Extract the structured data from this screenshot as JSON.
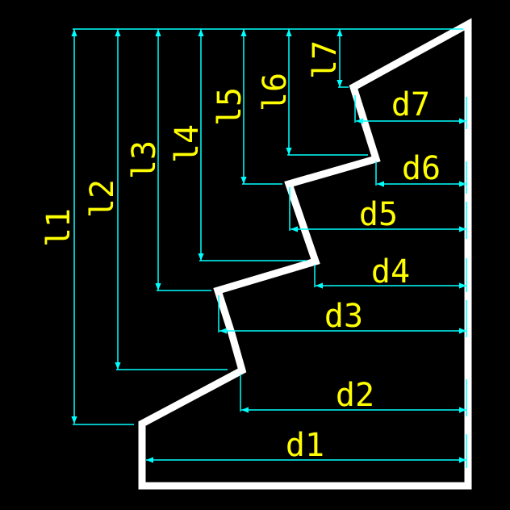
{
  "colors": {
    "background": "#000000",
    "outline": "#ffffff",
    "dimension_line": "#00ffff",
    "label": "#ffff00"
  },
  "vertical_dimensions": [
    {
      "label": "l1"
    },
    {
      "label": "l2"
    },
    {
      "label": "l3"
    },
    {
      "label": "l4"
    },
    {
      "label": "l5"
    },
    {
      "label": "l6"
    },
    {
      "label": "l7"
    }
  ],
  "horizontal_dimensions": [
    {
      "label": "d1"
    },
    {
      "label": "d2"
    },
    {
      "label": "d3"
    },
    {
      "label": "d4"
    },
    {
      "label": "d5"
    },
    {
      "label": "d6"
    },
    {
      "label": "d7"
    }
  ]
}
